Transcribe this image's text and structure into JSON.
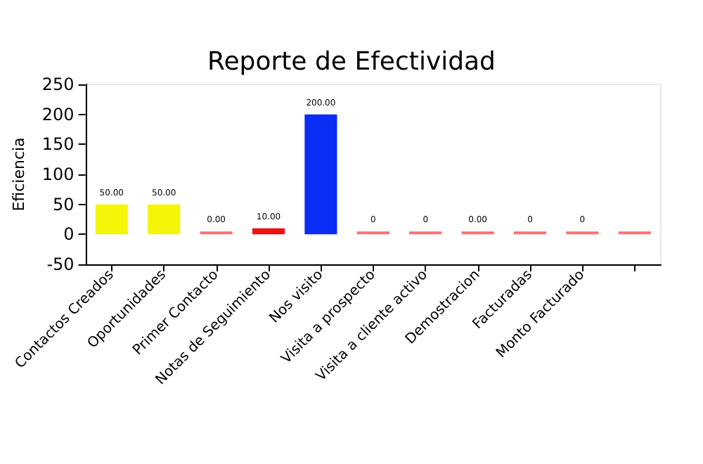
{
  "chart_data": {
    "type": "bar",
    "title": "Reporte de Efectividad",
    "ylabel": "Eficiencia",
    "categories": [
      "Contactos Creados",
      "Oportunidades",
      "Primer Contacto",
      "Notas de Seguimiento",
      "Nos visito",
      "Visita a prospecto",
      "Visita a cliente activo",
      "Demostracion",
      "Facturadas",
      "Monto Facturado",
      null
    ],
    "values": [
      50,
      50,
      0,
      10,
      200,
      0,
      0,
      0,
      0,
      0,
      0
    ],
    "colors": [
      "#f5f50a",
      "#f5f50a",
      "#ff7070",
      "#f01010",
      "#0a2ef5",
      "#ff7070",
      "#ff7070",
      "#ff7070",
      "#ff7070",
      "#ff7070",
      "#ff7070"
    ],
    "value_labels": [
      "50.00",
      "50.00",
      "0.00",
      "10.00",
      "200.00",
      "0",
      "0",
      "0.00",
      "0",
      "0",
      null
    ],
    "ylim": [
      -50,
      250
    ],
    "yticks": [
      -50,
      0,
      50,
      100,
      150,
      200,
      250
    ],
    "grid": false
  }
}
